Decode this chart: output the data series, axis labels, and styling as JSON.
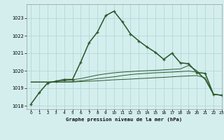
{
  "title": "Graphe pression niveau de la mer (hPa)",
  "bg_color": "#d4eeee",
  "grid_color": "#aed4d4",
  "line_color": "#2d5a2d",
  "xlim": [
    -0.5,
    23
  ],
  "ylim": [
    1017.8,
    1023.8
  ],
  "yticks": [
    1018,
    1019,
    1020,
    1021,
    1022,
    1023
  ],
  "xticks": [
    0,
    1,
    2,
    3,
    4,
    5,
    6,
    7,
    8,
    9,
    10,
    11,
    12,
    13,
    14,
    15,
    16,
    17,
    18,
    19,
    20,
    21,
    22,
    23
  ],
  "line1_solid": [
    1018.1,
    1018.75,
    1019.3,
    1019.4,
    1019.5,
    1019.5,
    1020.5,
    1021.6,
    1022.2,
    1023.15,
    1023.4,
    1022.8,
    1022.1,
    1021.7,
    1021.35,
    1021.05,
    1020.65,
    1021.0,
    1020.45,
    1020.4,
    1019.9,
    1019.85,
    1018.65,
    1018.6
  ],
  "line2": [
    1019.35,
    1019.35,
    1019.35,
    1019.35,
    1019.35,
    1019.35,
    1019.38,
    1019.4,
    1019.42,
    1019.45,
    1019.48,
    1019.5,
    1019.52,
    1019.55,
    1019.57,
    1019.6,
    1019.62,
    1019.65,
    1019.68,
    1019.7,
    1019.72,
    1019.6,
    1018.65,
    1018.6
  ],
  "line3": [
    1019.35,
    1019.35,
    1019.35,
    1019.35,
    1019.35,
    1019.38,
    1019.42,
    1019.48,
    1019.55,
    1019.6,
    1019.65,
    1019.72,
    1019.78,
    1019.82,
    1019.85,
    1019.88,
    1019.9,
    1019.92,
    1019.95,
    1019.98,
    1019.92,
    1019.5,
    1018.65,
    1018.6
  ],
  "line4": [
    1019.35,
    1019.35,
    1019.35,
    1019.38,
    1019.42,
    1019.48,
    1019.55,
    1019.65,
    1019.75,
    1019.82,
    1019.88,
    1019.92,
    1019.95,
    1019.98,
    1020.0,
    1020.02,
    1020.05,
    1020.08,
    1020.1,
    1020.3,
    1020.0,
    1019.5,
    1018.65,
    1018.6
  ]
}
